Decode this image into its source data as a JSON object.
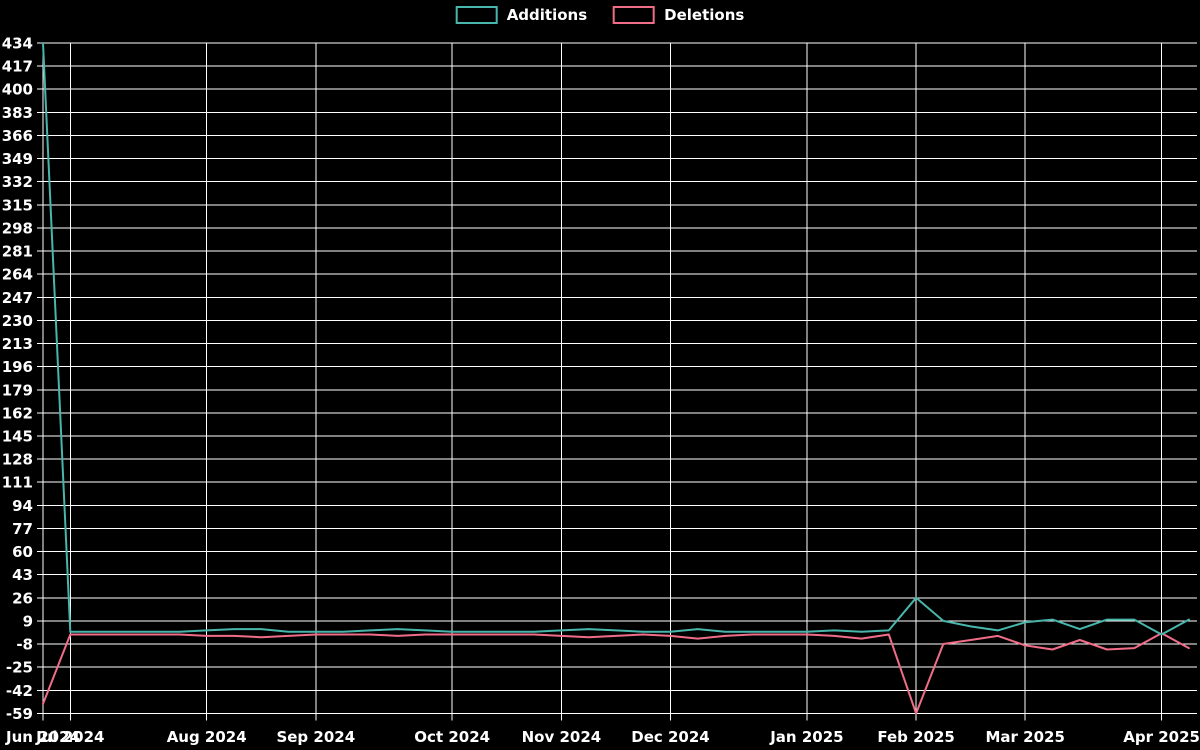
{
  "page": {
    "background_color": "#000000",
    "text_color": "#ffffff",
    "grid_color": "#ffffff"
  },
  "legend": {
    "position": "top-center",
    "items": [
      {
        "label": "Additions",
        "color": "#49b6ac"
      },
      {
        "label": "Deletions",
        "color": "#f06d88"
      }
    ]
  },
  "chart_data": {
    "type": "line",
    "title": "",
    "xlabel": "",
    "ylabel": "",
    "background": "#000000",
    "grid": true,
    "grid_color": "#ffffff",
    "legend_position": "top-center",
    "ylim": [
      -59,
      434
    ],
    "y_ticks": [
      434,
      417,
      400,
      383,
      366,
      349,
      332,
      315,
      298,
      281,
      264,
      247,
      230,
      213,
      196,
      179,
      162,
      145,
      128,
      111,
      94,
      77,
      60,
      43,
      26,
      9,
      -8,
      -25,
      -42,
      -59
    ],
    "x_points": 43,
    "x_tick_labels": [
      {
        "index": 0,
        "label": "Jun 2024"
      },
      {
        "index": 1,
        "label": "Jul 2024"
      },
      {
        "index": 6,
        "label": "Aug 2024"
      },
      {
        "index": 10,
        "label": "Sep 2024"
      },
      {
        "index": 15,
        "label": "Oct 2024"
      },
      {
        "index": 19,
        "label": "Nov 2024"
      },
      {
        "index": 23,
        "label": "Dec 2024"
      },
      {
        "index": 28,
        "label": "Jan 2025"
      },
      {
        "index": 32,
        "label": "Feb 2025"
      },
      {
        "index": 36,
        "label": "Mar 2025"
      },
      {
        "index": 41,
        "label": "Apr 2025"
      }
    ],
    "series": [
      {
        "name": "Additions",
        "color": "#49b6ac",
        "values": [
          434,
          1,
          1,
          1,
          1,
          1,
          2,
          3,
          3,
          1,
          1,
          1,
          2,
          3,
          2,
          1,
          1,
          1,
          1,
          2,
          3,
          2,
          1,
          1,
          3,
          1,
          1,
          1,
          1,
          2,
          1,
          2,
          26,
          9,
          5,
          2,
          8,
          10,
          3,
          10,
          10,
          -1,
          10
        ]
      },
      {
        "name": "Deletions",
        "color": "#f06d88",
        "values": [
          -52,
          -1,
          -1,
          -1,
          -1,
          -1,
          -2,
          -2,
          -3,
          -2,
          -1,
          -1,
          -1,
          -2,
          -1,
          -1,
          -1,
          -1,
          -1,
          -2,
          -3,
          -2,
          -1,
          -2,
          -4,
          -2,
          -1,
          -1,
          -1,
          -2,
          -4,
          -1,
          -59,
          -8,
          -5,
          -2,
          -9,
          -12,
          -5,
          -12,
          -11,
          0,
          -11
        ]
      }
    ]
  }
}
